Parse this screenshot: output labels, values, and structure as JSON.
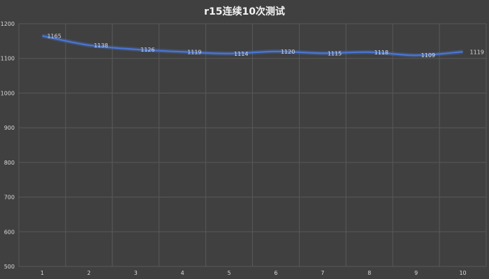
{
  "chart_data": {
    "type": "line",
    "title": "r15连续10次测试",
    "categories": [
      "1",
      "2",
      "3",
      "4",
      "5",
      "6",
      "7",
      "8",
      "9",
      "10"
    ],
    "series": [
      {
        "values": [
          1165,
          1138,
          1126,
          1119,
          1114,
          1120,
          1115,
          1118,
          1109,
          1119
        ]
      }
    ],
    "y_ticks": [
      500,
      600,
      700,
      800,
      900,
      1000,
      1100,
      1200
    ],
    "ylim": [
      500,
      1200
    ],
    "xlabel": "",
    "ylabel": "",
    "grid": true,
    "data_labels": true,
    "line_style": "smooth",
    "colors": {
      "background": "#404040",
      "line": "#4a76d4",
      "grid": "#595959",
      "text": "#d9d9d9"
    }
  }
}
